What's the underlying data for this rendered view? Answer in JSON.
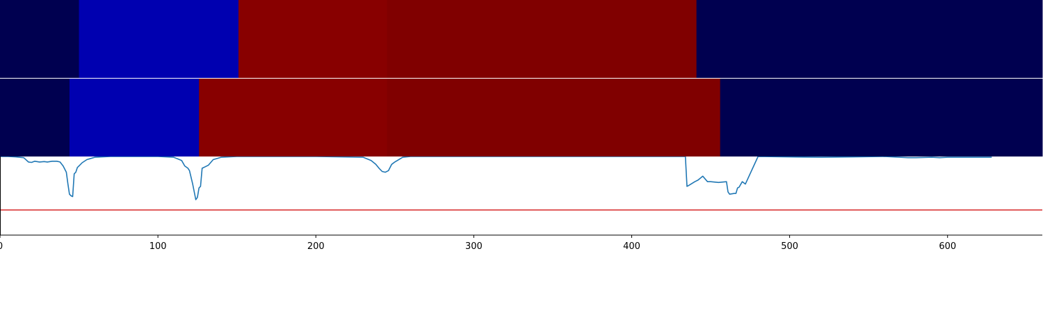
{
  "chart_data": {
    "type": "line",
    "xlim": [
      0,
      660
    ],
    "x_ticks": [
      0,
      100,
      200,
      300,
      400,
      500,
      600
    ],
    "x_tick_labels": [
      "0",
      "100",
      "200",
      "300",
      "400",
      "500",
      "600"
    ],
    "segment_tracks": [
      {
        "segments": [
          {
            "start": 0,
            "end": 50,
            "color": "#000050"
          },
          {
            "start": 50,
            "end": 151,
            "color": "#0000b0"
          },
          {
            "start": 151,
            "end": 245,
            "color": "#880000"
          },
          {
            "start": 245,
            "end": 441,
            "color": "#800000"
          },
          {
            "start": 441,
            "end": 660,
            "color": "#000050"
          }
        ]
      },
      {
        "segments": [
          {
            "start": 0,
            "end": 44,
            "color": "#000050"
          },
          {
            "start": 44,
            "end": 126,
            "color": "#0000b0"
          },
          {
            "start": 126,
            "end": 245,
            "color": "#880000"
          },
          {
            "start": 245,
            "end": 456,
            "color": "#800000"
          },
          {
            "start": 456,
            "end": 660,
            "color": "#000050"
          }
        ]
      }
    ],
    "ylim": [
      0,
      1
    ],
    "threshold": {
      "value": 0.32,
      "color": "#d62728"
    },
    "series": [
      {
        "color": "#1f77b4",
        "x": [
          0,
          5,
          10,
          15,
          18,
          20,
          22,
          25,
          28,
          30,
          33,
          36,
          38,
          40,
          42,
          43,
          44,
          45,
          46,
          47,
          48,
          49,
          50,
          52,
          55,
          60,
          70,
          80,
          100,
          110,
          115,
          117,
          119,
          120,
          122,
          124,
          125,
          126,
          127,
          128,
          130,
          132,
          135,
          140,
          150,
          200,
          230,
          235,
          238,
          240,
          242,
          244,
          246,
          248,
          250,
          255,
          260,
          300,
          350,
          400,
          430,
          434,
          435,
          436,
          440,
          442,
          445,
          448,
          450,
          455,
          460,
          461,
          462,
          465,
          466,
          467,
          468,
          470,
          472,
          480,
          500,
          520,
          540,
          560,
          575,
          580,
          590,
          595,
          600,
          620,
          628
        ],
        "y": [
          1.0,
          1.0,
          0.995,
          0.985,
          0.93,
          0.925,
          0.94,
          0.93,
          0.935,
          0.93,
          0.94,
          0.94,
          0.93,
          0.88,
          0.8,
          0.65,
          0.52,
          0.5,
          0.49,
          0.78,
          0.8,
          0.86,
          0.88,
          0.92,
          0.96,
          0.99,
          1.0,
          1.0,
          1.0,
          0.99,
          0.95,
          0.88,
          0.85,
          0.82,
          0.65,
          0.45,
          0.48,
          0.6,
          0.62,
          0.85,
          0.87,
          0.89,
          0.96,
          0.99,
          1.0,
          1.0,
          0.99,
          0.95,
          0.9,
          0.85,
          0.81,
          0.8,
          0.82,
          0.9,
          0.93,
          0.99,
          1.0,
          1.0,
          1.0,
          1.0,
          1.0,
          1.0,
          0.62,
          0.63,
          0.68,
          0.7,
          0.75,
          0.68,
          0.68,
          0.67,
          0.68,
          0.55,
          0.52,
          0.53,
          0.53,
          0.6,
          0.61,
          0.68,
          0.65,
          1.0,
          0.995,
          0.99,
          0.995,
          1.0,
          0.985,
          0.985,
          0.99,
          0.985,
          0.99,
          0.99,
          0.99
        ]
      }
    ]
  }
}
